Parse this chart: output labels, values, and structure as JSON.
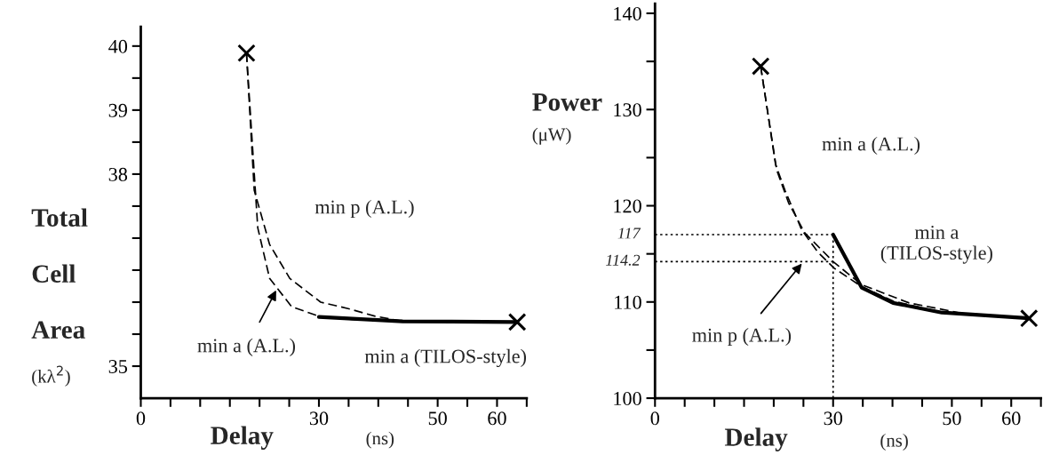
{
  "chart_data": [
    {
      "type": "line",
      "xlabel": "Delay (ns)",
      "ylabel": "Total\n\nCell\n\nArea\n(kλ$^{2}$)",
      "xlim": [
        0,
        65
      ],
      "xticks": [
        0,
        {
          "value": 5,
          "label": null
        },
        {
          "value": 10,
          "label": null
        },
        {
          "value": 15,
          "label": null
        },
        {
          "value": 20,
          "label": null
        },
        {
          "value": 25,
          "label": null
        },
        30,
        {
          "value": 35,
          "label": null
        },
        {
          "value": 40,
          "label": null
        },
        {
          "value": 45,
          "label": null
        },
        50,
        {
          "value": 55,
          "label": null
        },
        60,
        {
          "value": 65,
          "label": null
        }
      ],
      "ylim": [
        34.5,
        40.3
      ],
      "yticks": [
        35,
        {
          "value": 35.5,
          "label": null
        },
        {
          "value": 36,
          "label": null
        },
        {
          "value": 36.5,
          "label": null
        },
        {
          "value": 37,
          "label": null
        },
        {
          "value": 37.5,
          "label": null
        },
        38,
        {
          "value": 38.5,
          "label": null
        },
        39,
        {
          "value": 39.5,
          "label": null
        },
        40
      ],
      "grid": false,
      "series": [
        {
          "color": "#000000",
          "line_style": "dashed",
          "x": [
            17.8,
            19.1,
            21.7,
            25.1,
            30.3,
            34.9,
            39.5,
            44.1,
            63.4
          ],
          "values": [
            39.89,
            37.75,
            36.9,
            36.37,
            36.0,
            35.9,
            35.78,
            35.7,
            35.69
          ]
        },
        {
          "color": "#000000",
          "line_style": "dashed",
          "x": [
            17.8,
            19.7,
            21.7,
            25.4,
            30.0,
            35.5,
            44.1
          ],
          "values": [
            39.89,
            37.16,
            36.37,
            35.93,
            35.78,
            35.73,
            35.7
          ]
        },
        {
          "color": "#000000",
          "line_style": "solid",
          "x": [
            30.0,
            44.1,
            63.4
          ],
          "values": [
            35.77,
            35.7,
            35.69
          ]
        },
        {
          "type": "scatter",
          "color": "#000000",
          "marker": "cross",
          "x": [
            17.8,
            63.4
          ],
          "values": [
            39.89,
            35.69
          ]
        }
      ],
      "annotations": [
        "min p (A.L.)",
        {
          "text": "min a (A.L.)",
          "x": 23.0,
          "y": 36.22
        },
        "min a (TILOS-style)"
      ]
    },
    {
      "type": "line",
      "xlabel": "Delay (ns)",
      "ylabel": "Power\n(μW)",
      "xlim": [
        0,
        65
      ],
      "xticks": [
        0,
        {
          "value": 5,
          "label": null
        },
        {
          "value": 10,
          "label": null
        },
        {
          "value": 15,
          "label": null
        },
        {
          "value": 20,
          "label": null
        },
        {
          "value": 25,
          "label": null
        },
        30,
        {
          "value": 35,
          "label": null
        },
        {
          "value": 40,
          "label": null
        },
        {
          "value": 45,
          "label": null
        },
        50,
        {
          "value": 55,
          "label": null
        },
        60,
        {
          "value": 65,
          "label": null
        }
      ],
      "ylim": [
        100,
        141
      ],
      "yticks": [
        100,
        {
          "value": 105,
          "label": null
        },
        110,
        {
          "value": 115,
          "label": null
        },
        120,
        {
          "value": 125,
          "label": null
        },
        130,
        {
          "value": 135,
          "label": null
        },
        140
      ],
      "grid": false,
      "ref_lines": [
        {
          "axis": "y",
          "value": 117,
          "label": "117",
          "line_style": "dotted"
        },
        {
          "axis": "y",
          "value": 114.2,
          "label": "114.2",
          "line_style": "dotted"
        },
        {
          "axis": "x",
          "value": 30,
          "line_style": "dotted"
        }
      ],
      "series": [
        {
          "color": "#000000",
          "line_style": "dashed",
          "x": [
            17.8,
            20.3,
            21.9,
            24.7,
            27.4,
            30.2,
            34.8,
            40.1,
            48.3,
            63.0
          ],
          "values": [
            134.5,
            124.3,
            121.6,
            117.5,
            115.2,
            113.5,
            111.6,
            110.1,
            108.9,
            108.3
          ]
        },
        {
          "color": "#000000",
          "line_style": "dashed",
          "x": [
            17.8,
            20.5,
            22.5,
            25.2,
            30.0,
            34.8,
            42.8,
            51.1
          ],
          "values": [
            134.5,
            123.7,
            120.3,
            117.2,
            114.2,
            111.8,
            109.9,
            108.9
          ]
        },
        {
          "color": "#000000",
          "line_style": "solid",
          "x": [
            30.0,
            34.8,
            40.1,
            48.3,
            63.0
          ],
          "values": [
            117,
            111.5,
            109.9,
            108.9,
            108.3
          ]
        },
        {
          "type": "scatter",
          "color": "#000000",
          "marker": "cross",
          "x": [
            17.8,
            63.0
          ],
          "values": [
            134.5,
            108.3
          ]
        }
      ],
      "annotations": [
        "min a (A.L.)",
        "min a\n(TILOS-style)",
        {
          "text": "min p (A.L.)",
          "x": 25.0,
          "y": 114.2
        }
      ]
    }
  ]
}
